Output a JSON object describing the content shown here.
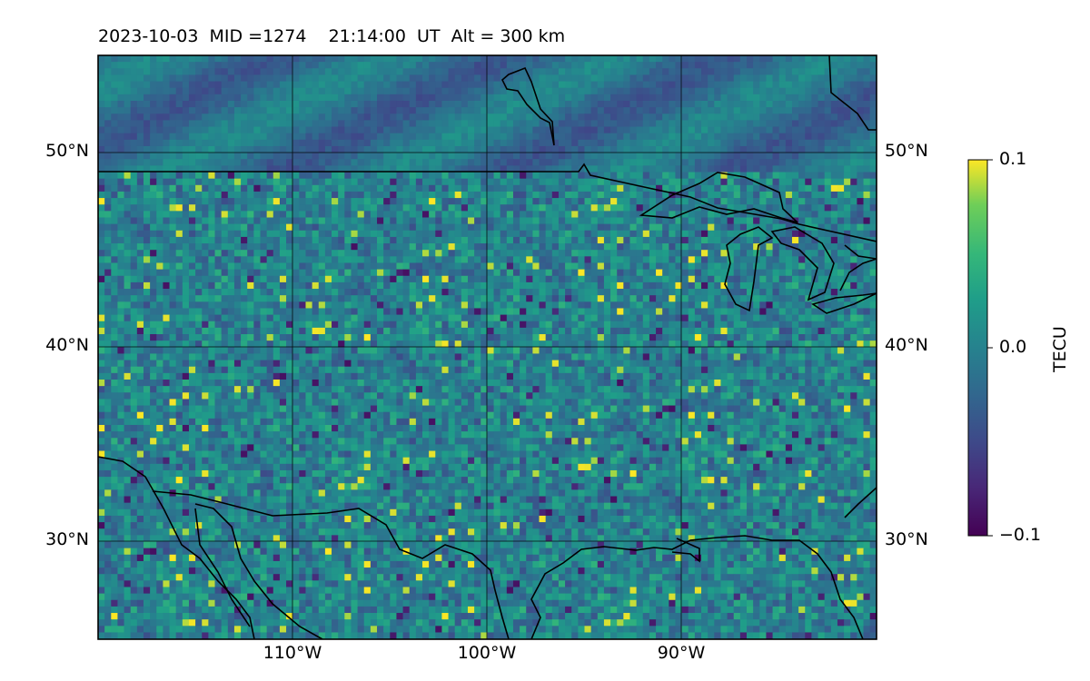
{
  "title": "2023-10-03  MID =1274    21:14:00  UT  Alt = 300 km",
  "map": {
    "extent": {
      "lon": [
        -120,
        -80
      ],
      "lat": [
        25,
        55
      ]
    },
    "lat_labels": [
      {
        "lat": 50,
        "text": "50°N"
      },
      {
        "lat": 40,
        "text": "40°N"
      },
      {
        "lat": 30,
        "text": "30°N"
      }
    ],
    "lon_labels": [
      {
        "lon": -110,
        "text": "110°W"
      },
      {
        "lon": -100,
        "text": "100°W"
      },
      {
        "lon": -90,
        "text": "90°W"
      }
    ],
    "field": "differential TEC perturbation grid",
    "colormap": "viridis"
  },
  "colorbar": {
    "label": "TECU",
    "min": -0.1,
    "max": 0.1,
    "ticks": [
      {
        "value": 0.1,
        "text": "0.1"
      },
      {
        "value": 0.0,
        "text": "0.0"
      },
      {
        "value": -0.1,
        "text": "−0.1"
      }
    ]
  }
}
